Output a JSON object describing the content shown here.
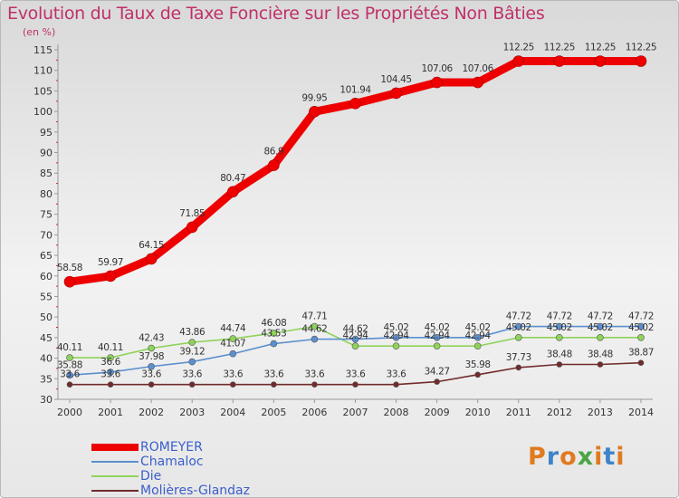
{
  "header": {
    "title": "Evolution du Taux de Taxe Foncière sur les Propriétés Non Bâties",
    "unit": "(en %)"
  },
  "brand": {
    "letters": [
      "P",
      "r",
      "o",
      "x",
      "i",
      "t",
      "i"
    ],
    "colors": [
      "#e07b1f",
      "#3f83c9",
      "#e07b1f",
      "#4aa542",
      "#e07b1f",
      "#3f83c9",
      "#e07b1f"
    ]
  },
  "chart_data": {
    "type": "line",
    "title": "Evolution du Taux de Taxe Foncière sur les Propriétés Non Bâties",
    "ylabel": "(en %)",
    "xlabel": "",
    "x": [
      "2000",
      "2001",
      "2002",
      "2003",
      "2004",
      "2005",
      "2006",
      "2007",
      "2008",
      "2009",
      "2010",
      "2011",
      "2012",
      "2013",
      "2014"
    ],
    "ylim": [
      30,
      115
    ],
    "yticks": [
      30,
      35,
      40,
      45,
      50,
      55,
      60,
      65,
      70,
      75,
      80,
      85,
      90,
      95,
      100,
      105,
      110,
      115
    ],
    "grid": false,
    "legend_position": "bottom-left",
    "series": [
      {
        "name": "ROMEYER",
        "color": "#ee0000",
        "labels": [
          "58.58",
          "59.97",
          "64.15",
          "71.85",
          "80.47",
          "86.9",
          "99.95",
          "101.94",
          "104.45",
          "107.06",
          "107.06",
          "112.25",
          "112.25",
          "112.25",
          "112.25"
        ],
        "values": [
          58.58,
          59.97,
          64.15,
          71.85,
          80.47,
          86.9,
          99.95,
          101.94,
          104.45,
          107.06,
          107.06,
          112.25,
          112.25,
          112.25,
          112.25
        ]
      },
      {
        "name": "Chamaloc",
        "color": "#5b8fcf",
        "labels": [
          "35.88",
          "36.6",
          "37.98",
          "39.12",
          "41.07",
          "43.53",
          "44.62",
          "44.62",
          "45.02",
          "45.02",
          "45.02",
          "47.72",
          "47.72",
          "47.72",
          "47.72"
        ],
        "values": [
          35.88,
          36.6,
          37.98,
          39.12,
          41.07,
          43.53,
          44.62,
          44.62,
          45.02,
          45.02,
          45.02,
          47.72,
          47.72,
          47.72,
          47.72
        ]
      },
      {
        "name": "Die",
        "color": "#8ed35a",
        "labels": [
          "40.11",
          "40.11",
          "42.43",
          "43.86",
          "44.74",
          "46.08",
          "47.71",
          "42.94",
          "42.94",
          "42.94",
          "42.94",
          "45.02",
          "45.02",
          "45.02",
          "45.02"
        ],
        "values": [
          40.11,
          40.11,
          42.43,
          43.86,
          44.74,
          46.08,
          47.71,
          42.94,
          42.94,
          42.94,
          42.94,
          45.02,
          45.02,
          45.02,
          45.02
        ]
      },
      {
        "name": "Molières-Glandaz",
        "color": "#722b2b",
        "labels": [
          "33.6",
          "33.6",
          "33.6",
          "33.6",
          "33.6",
          "33.6",
          "33.6",
          "33.6",
          "33.6",
          "34.27",
          "35.98",
          "37.73",
          "38.48",
          "38.48",
          "38.87"
        ],
        "values": [
          33.6,
          33.6,
          33.6,
          33.6,
          33.6,
          33.6,
          33.6,
          33.6,
          33.6,
          34.27,
          35.98,
          37.73,
          38.48,
          38.48,
          38.87
        ]
      }
    ]
  }
}
